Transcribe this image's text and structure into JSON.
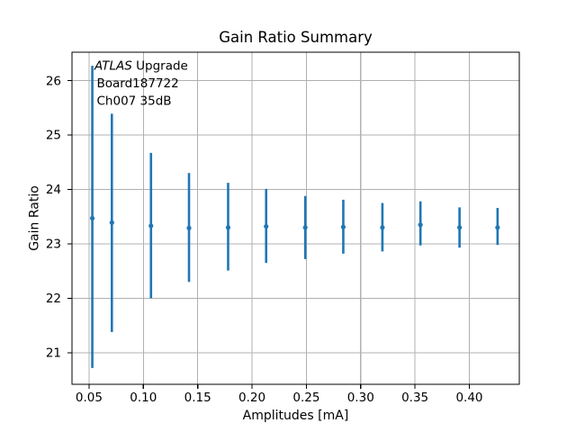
{
  "figure": {
    "background": "#ffffff",
    "spine_color": "#000000",
    "text_color": "#000000"
  },
  "annotation": {
    "experiment_italic": "ATLAS",
    "experiment_rest": " Upgrade",
    "board": "Board187722",
    "channel": "Ch007 35dB"
  },
  "chart_data": {
    "type": "scatter",
    "subtype": "errorbar",
    "title": "Gain Ratio Summary",
    "xlabel": "Amplitudes [mA]",
    "ylabel": "Gain Ratio",
    "series_color": "#1f77b4",
    "grid_color": "#b0b0b0",
    "grid": true,
    "legend": false,
    "xlim": [
      0.0343,
      0.446
    ],
    "ylim": [
      20.42,
      26.52
    ],
    "x": [
      0.053,
      0.071,
      0.107,
      0.142,
      0.178,
      0.213,
      0.249,
      0.284,
      0.32,
      0.355,
      0.391,
      0.426
    ],
    "y": [
      23.47,
      23.39,
      23.33,
      23.29,
      23.3,
      23.32,
      23.3,
      23.31,
      23.3,
      23.35,
      23.3,
      23.3
    ],
    "y_upper": [
      26.27,
      25.39,
      24.67,
      24.3,
      24.12,
      24.01,
      23.88,
      23.81,
      23.75,
      23.78,
      23.67,
      23.66
    ],
    "y_lower": [
      20.72,
      21.38,
      22.0,
      22.3,
      22.51,
      22.65,
      22.72,
      22.82,
      22.86,
      22.97,
      22.93,
      22.98
    ],
    "xticks": {
      "values": [
        0.05,
        0.1,
        0.15,
        0.2,
        0.25,
        0.3,
        0.35,
        0.4
      ],
      "labels": [
        "0.05",
        "0.10",
        "0.15",
        "0.20",
        "0.25",
        "0.30",
        "0.35",
        "0.40"
      ]
    },
    "yticks": {
      "values": [
        21,
        22,
        23,
        24,
        25,
        26
      ],
      "labels": [
        "21",
        "22",
        "23",
        "24",
        "25",
        "26"
      ]
    }
  }
}
